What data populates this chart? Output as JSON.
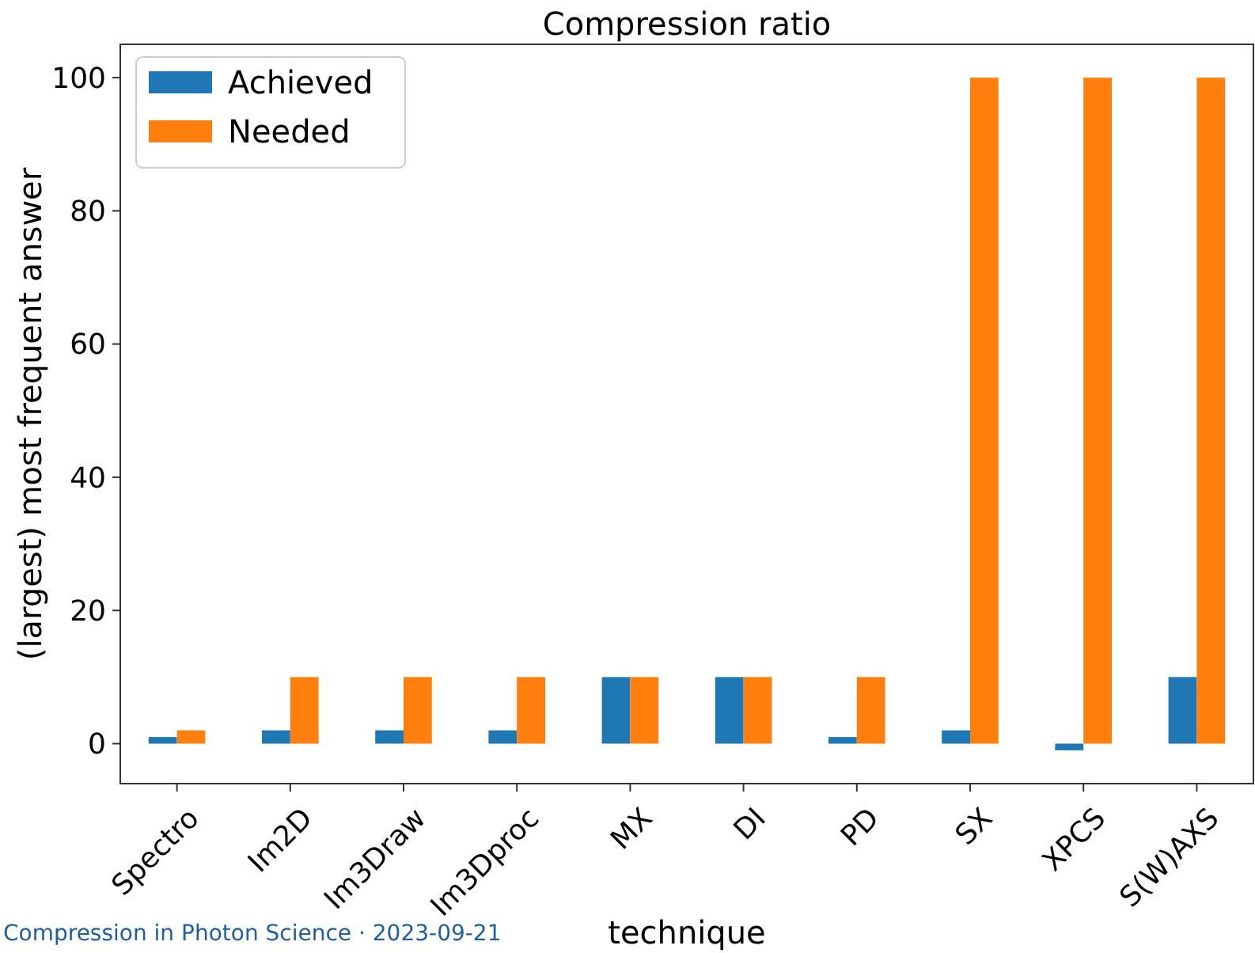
{
  "chart_data": {
    "type": "bar",
    "title": "Compression ratio",
    "xlabel": "technique",
    "ylabel": "(largest) most frequent answer",
    "categories": [
      "Spectro",
      "Im2D",
      "Im3Draw",
      "Im3Dproc",
      "MX",
      "DI",
      "PD",
      "SX",
      "XPCS",
      "S(W)AXS"
    ],
    "series": [
      {
        "name": "Achieved",
        "color": "#1f77b4",
        "values": [
          1,
          2,
          2,
          2,
          10,
          10,
          1,
          2,
          -1,
          10
        ]
      },
      {
        "name": "Needed",
        "color": "#ff7f0e",
        "values": [
          2,
          10,
          10,
          10,
          10,
          10,
          10,
          100,
          100,
          100
        ]
      }
    ],
    "ylim": [
      -6,
      105
    ],
    "yticks": [
      0,
      20,
      40,
      60,
      80,
      100
    ],
    "grid": false,
    "legend": "top left",
    "annotations": [
      "Compression in Photon Science · 2023-09-21"
    ]
  }
}
